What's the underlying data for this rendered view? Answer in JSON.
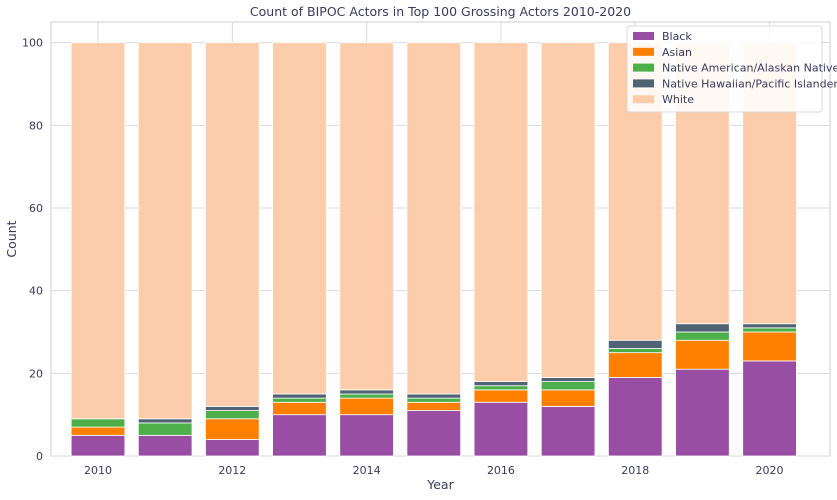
{
  "chart_data": {
    "type": "bar",
    "stacked": true,
    "title": "Count of BIPOC Actors in Top 100 Grossing Actors 2010-2020",
    "xlabel": "Year",
    "ylabel": "Count",
    "ylim": [
      0,
      105
    ],
    "xlim": [
      2009.3,
      2020.9
    ],
    "grid": true,
    "legend_position": "top-right",
    "x": [
      2010,
      2011,
      2012,
      2013,
      2014,
      2015,
      2016,
      2017,
      2018,
      2019,
      2020
    ],
    "x_ticks": [
      "2010",
      "2012",
      "2014",
      "2016",
      "2018",
      "2020"
    ],
    "y_ticks": [
      "0",
      "20",
      "40",
      "60",
      "80",
      "100"
    ],
    "series": [
      {
        "name": "Black",
        "color": "#984ea3",
        "values": [
          5,
          5,
          4,
          10,
          10,
          11,
          13,
          12,
          19,
          21,
          23
        ]
      },
      {
        "name": "Asian",
        "color": "#ff7f00",
        "values": [
          2,
          0,
          5,
          3,
          4,
          2,
          3,
          4,
          6,
          7,
          7
        ]
      },
      {
        "name": "Native American/Alaskan Native",
        "color": "#4daf4a",
        "values": [
          2,
          3,
          2,
          1,
          1,
          1,
          1,
          2,
          1,
          2,
          1
        ]
      },
      {
        "name": "Native Hawaiian/Pacific Islander",
        "color": "#4f6375",
        "values": [
          0,
          1,
          1,
          1,
          1,
          1,
          1,
          1,
          2,
          2,
          1
        ]
      },
      {
        "name": "White",
        "color": "#fdcdab",
        "values": [
          91,
          91,
          88,
          85,
          84,
          85,
          82,
          81,
          72,
          68,
          68
        ]
      }
    ]
  }
}
